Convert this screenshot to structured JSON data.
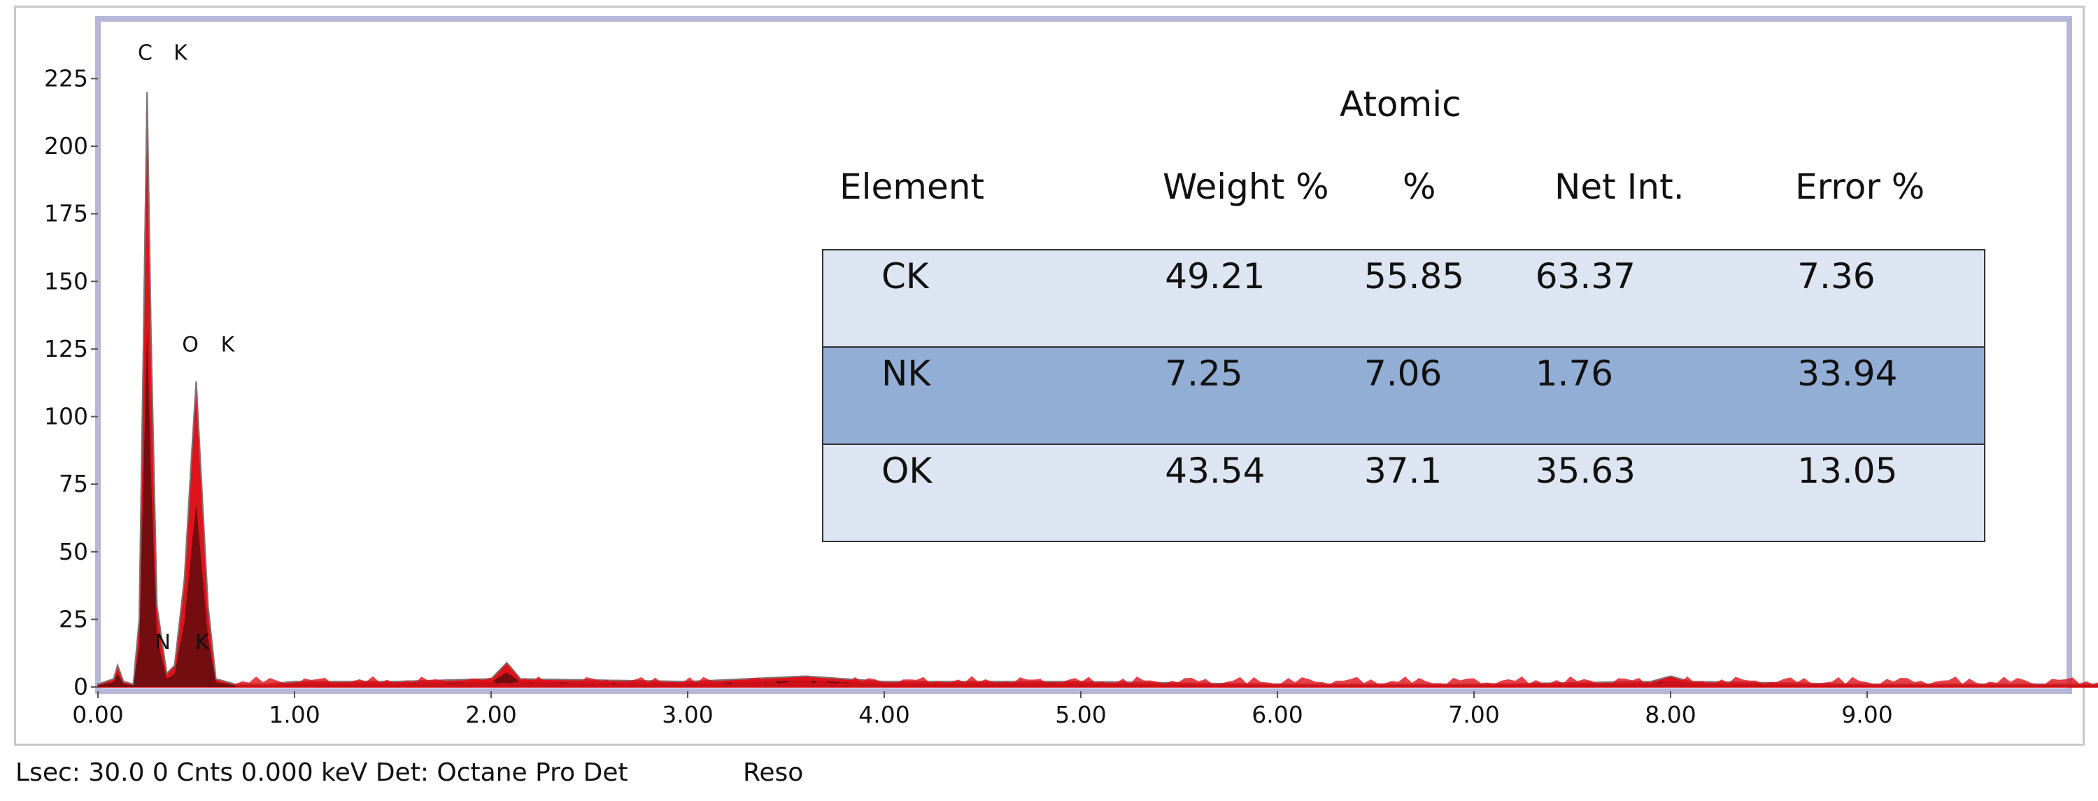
{
  "chart_data": {
    "type": "area",
    "xlim": [
      0,
      10.5
    ],
    "ylim": [
      0,
      225
    ],
    "x_ticks": [
      "0.00",
      "1.00",
      "2.00",
      "3.00",
      "4.00",
      "5.00",
      "6.00",
      "7.00",
      "8.00",
      "9.00"
    ],
    "y_ticks": [
      "0",
      "25",
      "50",
      "75",
      "100",
      "125",
      "150",
      "175",
      "200",
      "225"
    ],
    "grid": false,
    "spectrum": {
      "x": [
        0.0,
        0.08,
        0.1,
        0.13,
        0.18,
        0.21,
        0.23,
        0.25,
        0.27,
        0.3,
        0.35,
        0.39,
        0.44,
        0.48,
        0.5,
        0.52,
        0.56,
        0.6,
        0.7,
        0.85,
        1.0,
        1.5,
        2.0,
        2.08,
        2.15,
        3.0,
        3.6,
        4.0,
        5.0,
        6.0,
        7.0,
        7.9,
        8.0,
        8.1,
        9.0,
        10.5
      ],
      "y": [
        1,
        3,
        8,
        2,
        1,
        25,
        120,
        220,
        130,
        30,
        5,
        8,
        40,
        90,
        113,
        85,
        30,
        3,
        1,
        1,
        2,
        2,
        3,
        9,
        3,
        2,
        4,
        2,
        2,
        1,
        1,
        2,
        4,
        2,
        1,
        1
      ]
    },
    "peak_labels": [
      {
        "text": "C",
        "x": 0.24,
        "y": 232
      },
      {
        "text": "K",
        "x": 0.42,
        "y": 232
      },
      {
        "text": "O",
        "x": 0.47,
        "y": 124
      },
      {
        "text": "K",
        "x": 0.66,
        "y": 124
      },
      {
        "text": "N",
        "x": 0.33,
        "y": 14
      },
      {
        "text": "K",
        "x": 0.53,
        "y": 14
      }
    ],
    "colors": {
      "spectrum_fill": "#e0121a",
      "spectrum_core": "#1a0a0a",
      "spectrum_edge": "#40b0b0",
      "frame": "#b7b7d8"
    },
    "table": {
      "header_top": "Atomic",
      "headers": [
        "Element",
        "Weight  %",
        "%",
        "Net Int.",
        "Error %"
      ],
      "rows": [
        [
          "CK",
          "49.21",
          "55.85",
          "63.37",
          "7.36"
        ],
        [
          "NK",
          "7.25",
          "7.06",
          "1.76",
          "33.94"
        ],
        [
          "OK",
          "43.54",
          "37.1",
          "35.63",
          "13.05"
        ]
      ],
      "row_colors": [
        "#dce5f1",
        "#93aed5",
        "#dce5f1"
      ]
    }
  },
  "footer": {
    "status": "Lsec: 30.0 0 Cnts 0.000 keV Det: Octane Pro Det",
    "reso": "Reso"
  }
}
